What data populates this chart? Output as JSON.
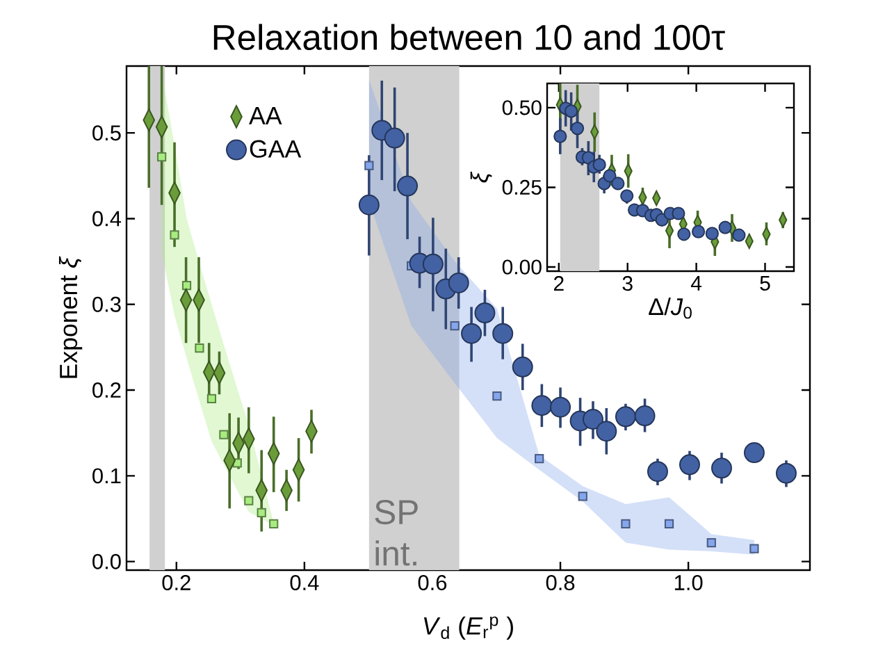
{
  "chart_data": [
    {
      "type": "scatter",
      "title": "Relaxation between 10 and 100τ",
      "xlabel": "*V*$_{d}$ (*E*$_{r}$$^{p}$ )",
      "ylabel": "Exponent *ξ*",
      "xlim": [
        0.122,
        1.19
      ],
      "ylim": [
        -0.01,
        0.578
      ],
      "xticks": [
        0.2,
        0.4,
        0.6,
        0.8,
        {
          "value": 1.0,
          "label": "1.0"
        }
      ],
      "yticks": [
        {
          "value": 0,
          "label": "0.0"
        },
        0.1,
        0.2,
        0.3,
        0.4,
        0.5
      ],
      "legend": "top left",
      "bands": [
        {
          "axis": "x",
          "from": 0.158,
          "to": 0.182,
          "color": "#d0d0d0"
        },
        {
          "axis": "x",
          "from": 0.501,
          "to": 0.642,
          "color": "#d0d0d0",
          "label": "SP int."
        }
      ],
      "series": [
        {
          "color": "#a8ec80",
          "marker": "square",
          "x": [
            0.177,
            0.197,
            0.216,
            0.236,
            0.255,
            0.274,
            0.295,
            0.313,
            0.333,
            0.352
          ],
          "values": [
            0.472,
            0.381,
            0.322,
            0.249,
            0.19,
            0.148,
            0.115,
            0.071,
            0.057,
            0.044
          ],
          "upper": [
            0.57,
            0.486,
            0.4,
            0.348,
            0.3,
            0.253,
            0.202,
            0.16,
            0.1,
            0.045
          ],
          "lower": [
            0.36,
            0.287,
            0.237,
            0.187,
            0.14,
            0.113,
            0.083,
            0.058,
            0.05,
            0.042
          ]
        },
        {
          "color": "#85a6ec",
          "marker": "square",
          "x": [
            0.501,
            0.567,
            0.635,
            0.701,
            0.767,
            0.835,
            0.902,
            0.97,
            1.036,
            1.103
          ],
          "values": [
            0.462,
            0.345,
            0.275,
            0.193,
            0.12,
            0.076,
            0.044,
            0.044,
            0.022,
            0.015
          ],
          "upper": [
            0.562,
            0.42,
            0.35,
            0.295,
            0.124,
            0.088,
            0.067,
            0.075,
            0.032,
            0.025
          ],
          "lower": [
            0.42,
            0.275,
            0.208,
            0.144,
            0.107,
            0.07,
            0.022,
            0.014,
            0.012,
            0.008
          ]
        },
        {
          "name": "AA",
          "color": "#6a9d3a",
          "marker": "diamond",
          "x": [
            0.157,
            0.177,
            0.197,
            0.215,
            0.235,
            0.251,
            0.267,
            0.283,
            0.297,
            0.313,
            0.333,
            0.352,
            0.372,
            0.391,
            0.411
          ],
          "values": [
            0.515,
            0.507,
            0.43,
            0.305,
            0.305,
            0.221,
            0.22,
            0.118,
            0.138,
            0.143,
            0.083,
            0.126,
            0.083,
            0.107,
            0.152
          ],
          "errors": [
            [
              0.436,
              0.578
            ],
            [
              0.416,
              0.578
            ],
            [
              0.367,
              0.489
            ],
            0.05,
            0.05,
            0.034,
            0.025,
            [
              0.062,
              0.173
            ],
            0.03,
            [
              0.103,
              0.18
            ],
            [
              0.035,
              0.13
            ],
            [
              0.081,
              0.169
            ],
            0.024,
            0.037,
            [
              0.126,
              0.177
            ]
          ]
        },
        {
          "name": "GAA",
          "color": "#4362a4",
          "marker": "circle",
          "x": [
            0.501,
            0.521,
            0.541,
            0.561,
            0.58,
            0.601,
            0.621,
            0.641,
            0.661,
            0.682,
            0.71,
            0.741,
            0.771,
            0.8,
            0.831,
            0.851,
            0.872,
            0.902,
            0.932,
            0.952,
            1.002,
            1.052,
            1.103,
            1.153
          ],
          "values": [
            0.416,
            0.503,
            0.494,
            0.438,
            0.348,
            0.347,
            0.318,
            0.325,
            0.266,
            0.29,
            0.266,
            0.227,
            0.182,
            0.18,
            0.164,
            0.166,
            0.152,
            0.169,
            0.17,
            0.105,
            0.113,
            0.109,
            0.127,
            0.103
          ],
          "errors": [
            [
              0.357,
              0.474
            ],
            [
              0.445,
              0.561
            ],
            [
              0.432,
              0.553
            ],
            [
              0.376,
              0.5
            ],
            [
              0.319,
              0.379
            ],
            [
              0.292,
              0.401
            ],
            [
              0.271,
              0.365
            ],
            [
              0.295,
              0.355
            ],
            [
              0.233,
              0.297
            ],
            [
              0.263,
              0.317
            ],
            [
              0.236,
              0.297
            ],
            [
              0.2,
              0.254
            ],
            [
              0.157,
              0.207
            ],
            [
              0.156,
              0.203
            ],
            [
              0.135,
              0.191
            ],
            [
              0.143,
              0.187
            ],
            [
              0.125,
              0.179
            ],
            [
              0.153,
              0.184
            ],
            [
              0.151,
              0.19
            ],
            [
              0.089,
              0.12
            ],
            [
              0.095,
              0.129
            ],
            [
              0.091,
              0.127
            ],
            null,
            [
              0.087,
              0.118
            ]
          ]
        }
      ]
    },
    {
      "type": "scatter",
      "xlabel": "Δ/*J*$_{0}$",
      "ylabel": "*ξ*",
      "xlim": [
        1.83,
        5.42
      ],
      "ylim": [
        -0.013,
        0.576
      ],
      "xticks": [
        2,
        3,
        4,
        5
      ],
      "yticks": [
        {
          "value": 0,
          "label": "0.00"
        },
        {
          "value": 0.25,
          "label": "0.25"
        },
        {
          "value": 0.5,
          "label": "0.50"
        }
      ],
      "bands": [
        {
          "axis": "x",
          "from": 2.02,
          "to": 2.59,
          "color": "#d0d0d0"
        }
      ],
      "series": [
        {
          "color": "#6a9d3a",
          "marker": "diamond",
          "x": [
            2.02,
            2.27,
            2.52,
            2.77,
            3.01,
            3.22,
            3.42,
            3.61,
            3.81,
            4.02,
            4.27,
            4.52,
            4.77,
            5.02,
            5.26
          ],
          "values": [
            0.509,
            0.504,
            0.424,
            0.303,
            0.301,
            0.218,
            0.216,
            0.114,
            0.135,
            0.14,
            0.079,
            0.122,
            0.081,
            0.103,
            0.148
          ],
          "errors": [
            [
              0.417,
              0.576
            ],
            [
              0.419,
              0.572
            ],
            [
              0.362,
              0.485
            ],
            [
              0.255,
              0.352
            ],
            [
              0.249,
              0.354
            ],
            [
              0.19,
              0.249
            ],
            [
              0.2,
              0.233
            ],
            [
              0.059,
              0.155
            ],
            0.02,
            [
              0.103,
              0.177
            ],
            [
              0.035,
              0.114
            ],
            [
              0.079,
              0.166
            ],
            null,
            [
              0.068,
              0.14
            ],
            [
              0.122,
              0.172
            ]
          ]
        },
        {
          "color": "#4362a4",
          "marker": "circle",
          "x": [
            2.02,
            2.1,
            2.18,
            2.27,
            2.34,
            2.43,
            2.51,
            2.59,
            2.66,
            2.74,
            2.86,
            2.99,
            3.1,
            3.22,
            3.34,
            3.42,
            3.5,
            3.62,
            3.74,
            3.82,
            4.03,
            4.23,
            4.42,
            4.62
          ],
          "values": [
            0.41,
            0.498,
            0.489,
            0.435,
            0.345,
            0.343,
            0.314,
            0.321,
            0.262,
            0.286,
            0.262,
            0.223,
            0.179,
            0.177,
            0.162,
            0.164,
            0.148,
            0.168,
            0.168,
            0.103,
            0.111,
            0.105,
            0.124,
            0.1
          ],
          "errors": [
            [
              0.354,
              0.467
            ],
            [
              0.441,
              0.555
            ],
            [
              0.428,
              0.548
            ],
            [
              0.373,
              0.493
            ],
            [
              0.319,
              0.373
            ],
            [
              0.288,
              0.395
            ],
            [
              0.266,
              0.362
            ],
            [
              0.293,
              0.352
            ],
            [
              0.231,
              0.288
            ],
            0.02,
            0.02,
            [
              0.199,
              0.242
            ],
            0.02,
            0.02,
            0.02,
            0.02,
            0.02,
            null,
            null,
            null,
            null,
            null,
            null,
            null
          ]
        }
      ]
    }
  ]
}
